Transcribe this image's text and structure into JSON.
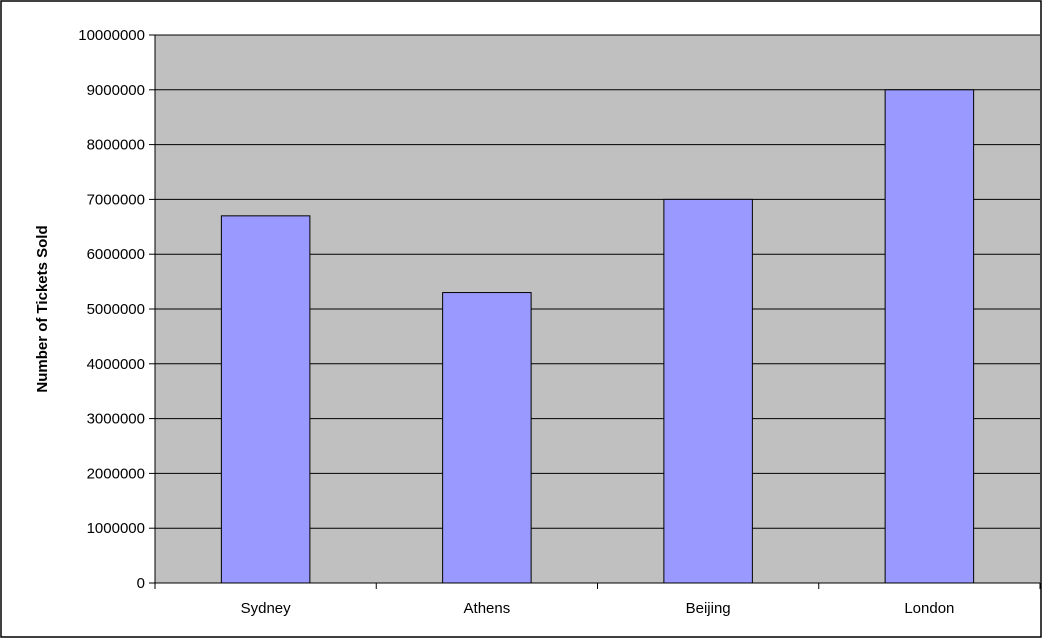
{
  "chart_data": {
    "type": "bar",
    "title": "",
    "xlabel": "",
    "ylabel": "Number of Tickets Sold",
    "categories": [
      "Sydney",
      "Athens",
      "Beijing",
      "London"
    ],
    "values": [
      6700000,
      5300000,
      7000000,
      9000000
    ],
    "ylim": [
      0,
      10000000
    ],
    "yticks": [
      "0",
      "1000000",
      "2000000",
      "3000000",
      "4000000",
      "5000000",
      "6000000",
      "7000000",
      "8000000",
      "9000000",
      "10000000"
    ],
    "grid": true,
    "legend": "none",
    "colors": {
      "bar_fill": "#9999ff",
      "plot_background": "#c0c0c0",
      "gridline": "#000000",
      "border": "#000000"
    }
  }
}
